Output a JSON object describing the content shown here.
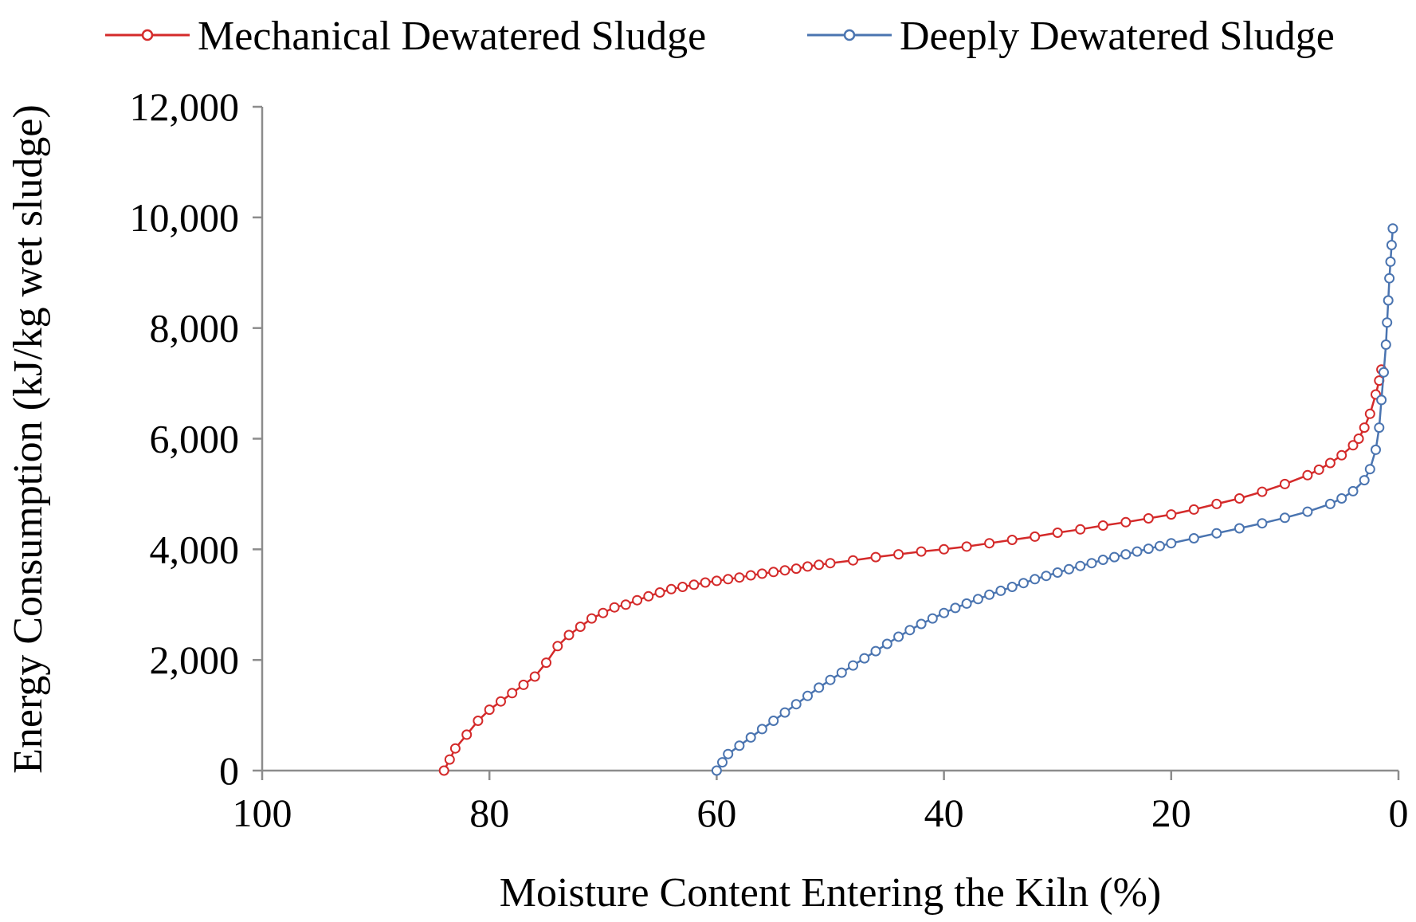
{
  "chart_data": {
    "type": "line",
    "title": "",
    "xlabel": "Moisture Content Entering the Kiln (%)",
    "ylabel": "Energy Consumption (kJ/kg wet sludge)",
    "xlim": [
      100,
      0
    ],
    "ylim": [
      0,
      12000
    ],
    "x_reversed": true,
    "x_ticks": [
      100,
      80,
      60,
      40,
      20,
      0
    ],
    "x_tick_labels": [
      "100",
      "80",
      "60",
      "40",
      "20",
      "0"
    ],
    "y_ticks": [
      0,
      2000,
      4000,
      6000,
      8000,
      10000,
      12000
    ],
    "y_tick_labels": [
      "0",
      "2,000",
      "4,000",
      "6,000",
      "8,000",
      "10,000",
      "12,000"
    ],
    "grid": false,
    "legend_position": "top",
    "series": [
      {
        "name": "Mechanical Dewatered Sludge",
        "color": "#d42a2a",
        "marker": "open-circle",
        "points": [
          [
            84,
            0
          ],
          [
            83.5,
            200
          ],
          [
            83,
            400
          ],
          [
            82,
            650
          ],
          [
            81,
            900
          ],
          [
            80,
            1100
          ],
          [
            79,
            1250
          ],
          [
            78,
            1400
          ],
          [
            77,
            1550
          ],
          [
            76,
            1700
          ],
          [
            75,
            1950
          ],
          [
            74,
            2250
          ],
          [
            73,
            2450
          ],
          [
            72,
            2600
          ],
          [
            71,
            2750
          ],
          [
            70,
            2850
          ],
          [
            69,
            2950
          ],
          [
            68,
            3000
          ],
          [
            67,
            3080
          ],
          [
            66,
            3150
          ],
          [
            65,
            3220
          ],
          [
            64,
            3280
          ],
          [
            63,
            3320
          ],
          [
            62,
            3360
          ],
          [
            61,
            3400
          ],
          [
            60,
            3430
          ],
          [
            59,
            3460
          ],
          [
            58,
            3490
          ],
          [
            57,
            3530
          ],
          [
            56,
            3560
          ],
          [
            55,
            3590
          ],
          [
            54,
            3620
          ],
          [
            53,
            3650
          ],
          [
            52,
            3690
          ],
          [
            51,
            3720
          ],
          [
            50,
            3750
          ],
          [
            48,
            3800
          ],
          [
            46,
            3860
          ],
          [
            44,
            3910
          ],
          [
            42,
            3960
          ],
          [
            40,
            4000
          ],
          [
            38,
            4050
          ],
          [
            36,
            4110
          ],
          [
            34,
            4170
          ],
          [
            32,
            4230
          ],
          [
            30,
            4300
          ],
          [
            28,
            4360
          ],
          [
            26,
            4430
          ],
          [
            24,
            4490
          ],
          [
            22,
            4560
          ],
          [
            20,
            4630
          ],
          [
            18,
            4720
          ],
          [
            16,
            4820
          ],
          [
            14,
            4920
          ],
          [
            12,
            5040
          ],
          [
            10,
            5180
          ],
          [
            8,
            5340
          ],
          [
            7,
            5440
          ],
          [
            6,
            5560
          ],
          [
            5,
            5700
          ],
          [
            4,
            5880
          ],
          [
            3.5,
            6000
          ],
          [
            3,
            6200
          ],
          [
            2.5,
            6450
          ],
          [
            2,
            6800
          ],
          [
            1.7,
            7050
          ],
          [
            1.5,
            7250
          ]
        ]
      },
      {
        "name": "Deeply Dewatered Sludge",
        "color": "#4a74b0",
        "marker": "open-circle",
        "points": [
          [
            60,
            0
          ],
          [
            59.5,
            150
          ],
          [
            59,
            300
          ],
          [
            58,
            450
          ],
          [
            57,
            600
          ],
          [
            56,
            750
          ],
          [
            55,
            900
          ],
          [
            54,
            1050
          ],
          [
            53,
            1200
          ],
          [
            52,
            1350
          ],
          [
            51,
            1500
          ],
          [
            50,
            1640
          ],
          [
            49,
            1770
          ],
          [
            48,
            1900
          ],
          [
            47,
            2030
          ],
          [
            46,
            2160
          ],
          [
            45,
            2290
          ],
          [
            44,
            2420
          ],
          [
            43,
            2540
          ],
          [
            42,
            2650
          ],
          [
            41,
            2750
          ],
          [
            40,
            2850
          ],
          [
            39,
            2940
          ],
          [
            38,
            3020
          ],
          [
            37,
            3100
          ],
          [
            36,
            3180
          ],
          [
            35,
            3250
          ],
          [
            34,
            3320
          ],
          [
            33,
            3390
          ],
          [
            32,
            3460
          ],
          [
            31,
            3520
          ],
          [
            30,
            3580
          ],
          [
            29,
            3640
          ],
          [
            28,
            3700
          ],
          [
            27,
            3750
          ],
          [
            26,
            3810
          ],
          [
            25,
            3860
          ],
          [
            24,
            3910
          ],
          [
            23,
            3960
          ],
          [
            22,
            4010
          ],
          [
            21,
            4060
          ],
          [
            20,
            4110
          ],
          [
            18,
            4200
          ],
          [
            16,
            4290
          ],
          [
            14,
            4380
          ],
          [
            12,
            4470
          ],
          [
            10,
            4570
          ],
          [
            8,
            4680
          ],
          [
            6,
            4820
          ],
          [
            5,
            4920
          ],
          [
            4,
            5050
          ],
          [
            3,
            5250
          ],
          [
            2.5,
            5450
          ],
          [
            2,
            5800
          ],
          [
            1.7,
            6200
          ],
          [
            1.5,
            6700
          ],
          [
            1.3,
            7200
          ],
          [
            1.1,
            7700
          ],
          [
            1.0,
            8100
          ],
          [
            0.9,
            8500
          ],
          [
            0.8,
            8900
          ],
          [
            0.7,
            9200
          ],
          [
            0.6,
            9500
          ],
          [
            0.5,
            9800
          ]
        ]
      }
    ]
  }
}
